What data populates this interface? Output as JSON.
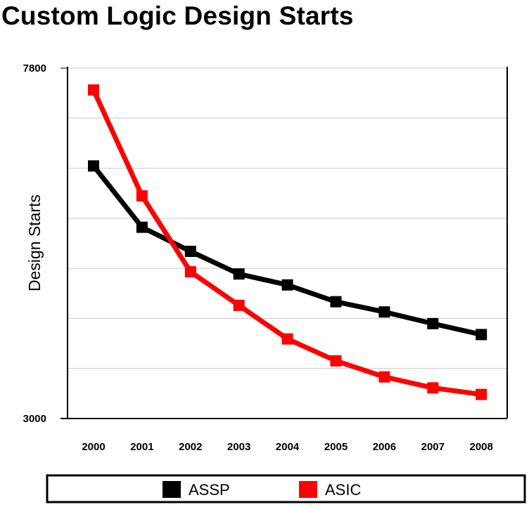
{
  "chart_data": {
    "type": "line",
    "title": "Custom Logic Design Starts",
    "ylabel": "Design Starts",
    "xlabel": "",
    "x": [
      "2000",
      "2001",
      "2002",
      "2003",
      "2004",
      "2005",
      "2006",
      "2007",
      "2008"
    ],
    "ylim": [
      3000,
      7800
    ],
    "yticks": [
      "3000",
      "7800"
    ],
    "grid": "horizontal",
    "legend_position": "bottom",
    "series": [
      {
        "name": "ASSP",
        "color": "#000000",
        "values": [
          6460,
          5620,
          5290,
          4980,
          4830,
          4600,
          4460,
          4300,
          4150
        ]
      },
      {
        "name": "ASIC",
        "color": "#ff0000",
        "values": [
          7500,
          6050,
          5010,
          4550,
          4090,
          3790,
          3570,
          3420,
          3330
        ]
      }
    ]
  }
}
